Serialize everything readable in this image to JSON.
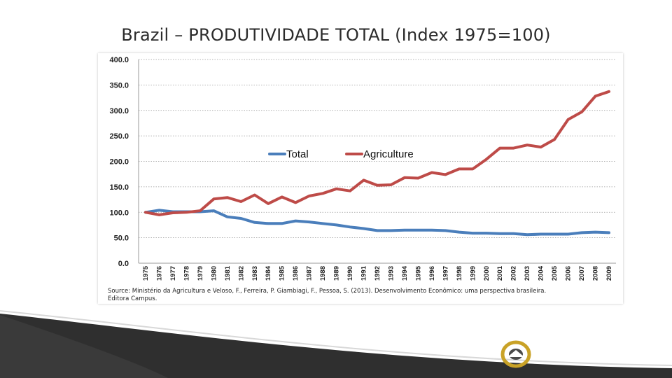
{
  "slide": {
    "title": "Brazil – PRODUTIVIDADE TOTAL (Index 1975=100)",
    "source_line1": "Source: Ministério da Agricultura e Veloso, F., Ferreira, P. Giambiagi, F., Pessoa, S. (2013). Desenvolvimento Econômico: uma perspectiva brasileira.",
    "source_line2": "Editora Campus."
  },
  "logo": {
    "text": "LCMB EXPERIENCE",
    "colors": {
      "gold": "#c9a227",
      "text": "#ffffff"
    }
  },
  "colors": {
    "total": "#4a7ebb",
    "agriculture": "#be4b48",
    "footer_dark": "#2f2f2f",
    "footer_light": "#e6e6e6"
  },
  "chart_data": {
    "type": "line",
    "title": "",
    "xlabel": "",
    "ylabel": "",
    "x": [
      "1975",
      "1976",
      "1977",
      "1978",
      "1979",
      "1980",
      "1981",
      "1982",
      "1983",
      "1984",
      "1985",
      "1986",
      "1987",
      "1988",
      "1989",
      "1990",
      "1991",
      "1992",
      "1993",
      "1994",
      "1995",
      "1996",
      "1997",
      "1998",
      "1999",
      "2000",
      "2001",
      "2002",
      "2003",
      "2004",
      "2005",
      "2006",
      "2007",
      "2008",
      "2009"
    ],
    "ylim": [
      0,
      400
    ],
    "yticks": [
      "0.0",
      "50.0",
      "100.0",
      "150.0",
      "200.0",
      "250.0",
      "300.0",
      "350.0",
      "400.0"
    ],
    "grid": true,
    "legend_position": "upper-center",
    "series": [
      {
        "name": "Total",
        "color": "#4a7ebb",
        "values": [
          100,
          104,
          101,
          101,
          101,
          103,
          91,
          88,
          80,
          78,
          78,
          83,
          81,
          78,
          75,
          71,
          68,
          64,
          64,
          65,
          65,
          65,
          64,
          61,
          59,
          59,
          58,
          58,
          56,
          57,
          57,
          57,
          60,
          61,
          60
        ]
      },
      {
        "name": "Agriculture",
        "color": "#be4b48",
        "values": [
          100,
          95,
          99,
          100,
          103,
          126,
          129,
          121,
          134,
          117,
          130,
          119,
          132,
          137,
          146,
          142,
          163,
          153,
          154,
          168,
          167,
          178,
          174,
          185,
          185,
          204,
          226,
          226,
          232,
          228,
          243,
          282,
          297,
          328,
          337
        ]
      }
    ]
  }
}
